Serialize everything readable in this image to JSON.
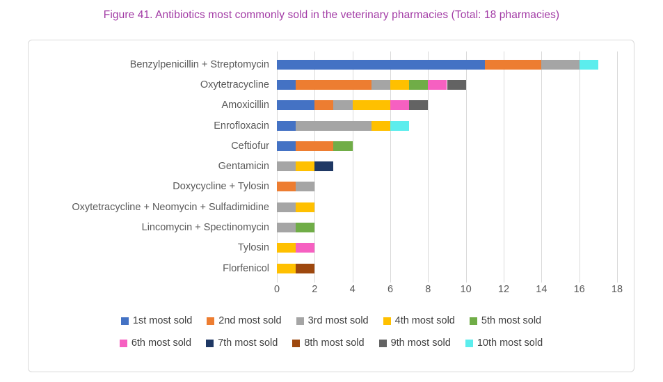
{
  "chart_data": {
    "type": "bar",
    "orientation": "horizontal-stacked",
    "title": "Figure 41. Antibiotics most commonly sold in the veterinary pharmacies (Total: 18 pharmacies)",
    "title_color": "#A23BA5",
    "categories": [
      "Benzylpenicillin + Streptomycin",
      "Oxytetracycline",
      "Amoxicillin",
      "Enrofloxacin",
      "Ceftiofur",
      "Gentamicin",
      "Doxycycline + Tylosin",
      "Oxytetracycline + Neomycin + Sulfadimidine",
      "Lincomycin + Spectinomycin",
      "Tylosin",
      "Florfenicol"
    ],
    "series": [
      {
        "name": "1st most sold",
        "color": "#4472C4",
        "values": [
          11,
          1,
          2,
          1,
          1,
          0,
          0,
          0,
          0,
          0,
          0
        ]
      },
      {
        "name": "2nd most sold",
        "color": "#ED7D31",
        "values": [
          3,
          4,
          1,
          0,
          2,
          0,
          1,
          0,
          0,
          0,
          0
        ]
      },
      {
        "name": "3rd most sold",
        "color": "#A5A5A5",
        "values": [
          2,
          1,
          1,
          4,
          0,
          1,
          1,
          1,
          1,
          0,
          0
        ]
      },
      {
        "name": "4th most sold",
        "color": "#FFC000",
        "values": [
          0,
          1,
          2,
          1,
          0,
          1,
          0,
          1,
          0,
          1,
          1
        ]
      },
      {
        "name": "5th most sold",
        "color": "#70AD47",
        "values": [
          0,
          1,
          0,
          0,
          1,
          0,
          0,
          0,
          1,
          0,
          0
        ]
      },
      {
        "name": "6th most sold",
        "color": "#F660C1",
        "values": [
          0,
          1,
          1,
          0,
          0,
          0,
          0,
          0,
          0,
          1,
          0
        ]
      },
      {
        "name": "7th most sold",
        "color": "#1F3864",
        "values": [
          0,
          0,
          0,
          0,
          0,
          1,
          0,
          0,
          0,
          0,
          0
        ]
      },
      {
        "name": "8th most sold",
        "color": "#9E480E",
        "values": [
          0,
          0,
          0,
          0,
          0,
          0,
          0,
          0,
          0,
          0,
          1
        ]
      },
      {
        "name": "9th most sold",
        "color": "#636363",
        "values": [
          0,
          1,
          1,
          0,
          0,
          0,
          0,
          0,
          0,
          0,
          0
        ]
      },
      {
        "name": "10th most sold",
        "color": "#5CEDED",
        "values": [
          1,
          0,
          0,
          1,
          0,
          0,
          0,
          0,
          0,
          0,
          0
        ]
      }
    ],
    "totals": [
      17,
      10,
      8,
      7,
      4,
      3,
      2,
      2,
      2,
      2,
      2
    ],
    "xlim": [
      0,
      18
    ],
    "xticks": [
      0,
      2,
      4,
      6,
      8,
      10,
      12,
      14,
      16,
      18
    ],
    "grid": true,
    "legend_position": "bottom",
    "legend_rows_split": 5
  },
  "style": {
    "grid_color": "#D9D9D9",
    "border_color": "#D9D9D9",
    "axis_text_color": "#595959",
    "legend_text_color": "#404040",
    "background": "#FFFFFF"
  }
}
